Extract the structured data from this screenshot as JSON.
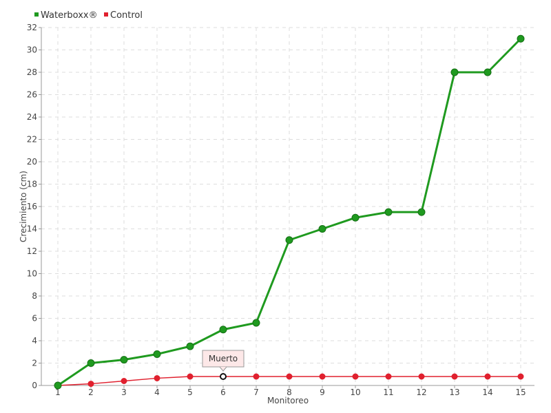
{
  "chart_data": {
    "type": "line",
    "title": "",
    "xlabel": "Monitoreo",
    "ylabel": "Crecimiento (cm)",
    "categories": [
      "1",
      "2",
      "3",
      "4",
      "5",
      "6",
      "7",
      "8",
      "9",
      "10",
      "11",
      "12",
      "13",
      "14",
      "15"
    ],
    "ylim": [
      0,
      32
    ],
    "yticks": [
      "0",
      "2",
      "4",
      "6",
      "8",
      "10",
      "12",
      "14",
      "16",
      "18",
      "20",
      "22",
      "24",
      "26",
      "28",
      "30",
      "32"
    ],
    "grid": true,
    "legend_position": "top-left",
    "series": [
      {
        "name": "Waterboxx®",
        "color": "#1f9a1f",
        "values": [
          0,
          2,
          2.3,
          2.8,
          3.5,
          5,
          5.6,
          13,
          14,
          15,
          15.5,
          15.5,
          28,
          28,
          31
        ]
      },
      {
        "name": "Control",
        "color": "#e0202e",
        "values": [
          0,
          0.15,
          0.4,
          0.65,
          0.8,
          0.8,
          0.8,
          0.8,
          0.8,
          0.8,
          0.8,
          0.8,
          0.8,
          0.8,
          0.8
        ]
      }
    ],
    "annotations": [
      {
        "text": "Muerto",
        "series": 1,
        "index": 5
      }
    ]
  }
}
